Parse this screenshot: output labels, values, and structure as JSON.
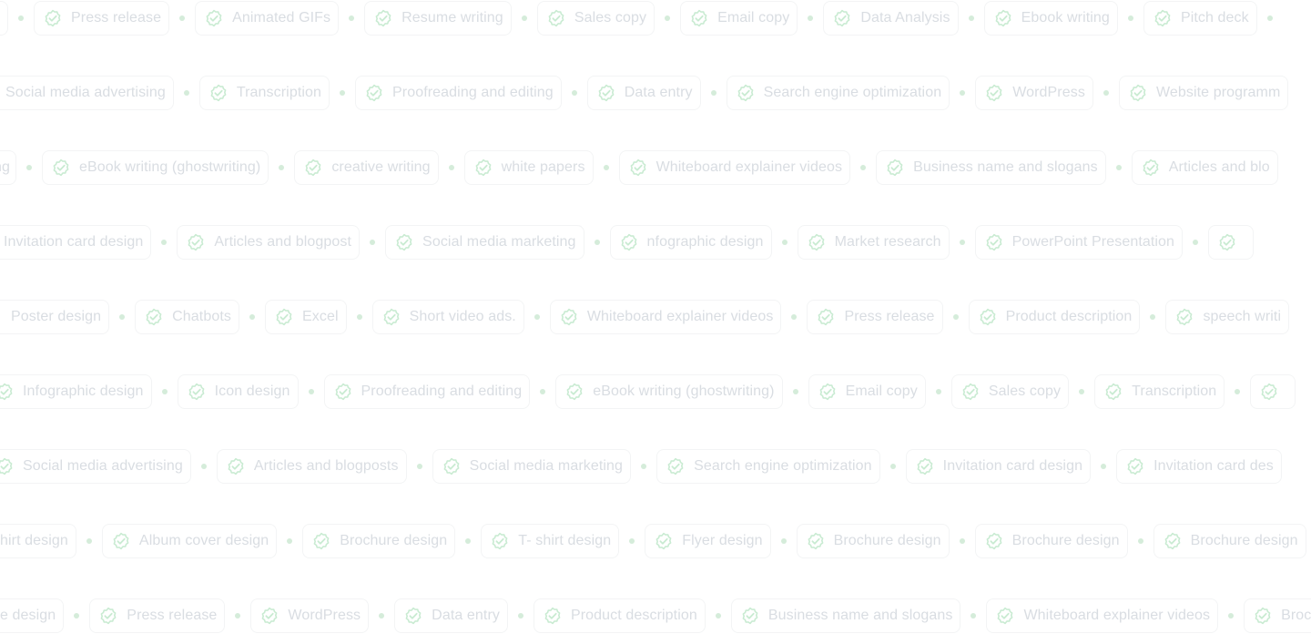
{
  "colors": {
    "chip_text": "#d9dde2",
    "chip_border": "#f3f4f5",
    "check_icon": "#c9ebd2",
    "dot": "#d5ecda",
    "background": "#ffffff"
  },
  "icon": "check-badge-icon",
  "rows": [
    [
      "Press release",
      "Animated GIFs",
      "Resume writing",
      "Sales copy",
      "Email copy",
      "Data Analysis",
      "Ebook writing",
      "Pitch deck"
    ],
    [
      "Social media advertising",
      "Transcription",
      "Proofreading and editing",
      "Data entry",
      "Search engine optimization",
      "WordPress",
      "Website programm"
    ],
    [
      "eBook writing (ghostwriting)",
      "creative writing",
      "white papers",
      "Whiteboard explainer videos",
      "Business name and slogans",
      "Articles and blo"
    ],
    [
      "Invitation card design",
      "Articles and blogpost",
      "Social media marketing",
      "nfographic design",
      "Market research",
      "PowerPoint Presentation"
    ],
    [
      "Poster design",
      "Chatbots",
      "Excel",
      "Short video ads.",
      "Whiteboard explainer videos",
      "Press release",
      "Product description",
      "speech writi"
    ],
    [
      "Infographic design",
      "Icon design",
      "Proofreading and editing",
      "eBook writing (ghostwriting)",
      "Email copy",
      "Sales copy",
      "Transcription"
    ],
    [
      "Social media advertising",
      "Articles and blogposts",
      "Social media marketing",
      "Search engine optimization",
      "Invitation card design",
      "Invitation card des"
    ],
    [
      "hirt design",
      "Album cover design",
      "Brochure design",
      "T- shirt design",
      "Flyer design",
      "Brochure design",
      "Brochure design",
      "Brochure design"
    ],
    [
      "e design",
      "Press release",
      "WordPress",
      "Data entry",
      "Product description",
      "Business name and slogans",
      "Whiteboard explainer videos",
      "Broc"
    ]
  ]
}
